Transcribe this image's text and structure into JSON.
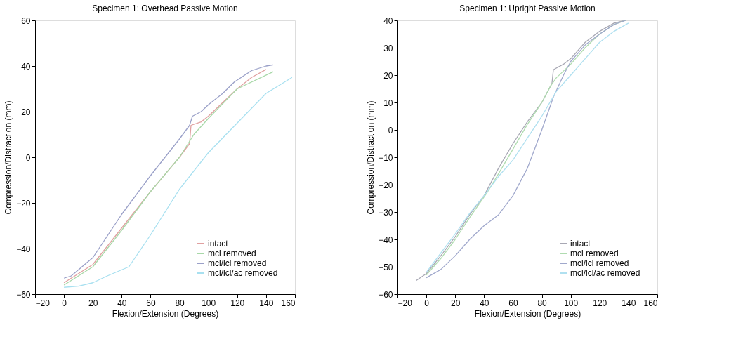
{
  "chart_data": [
    {
      "type": "line",
      "title": "Specimen 1: Overhead Passive Motion",
      "xlabel": "Flexion/Extension (Degrees)",
      "ylabel": "Compression/Distraction (mm)",
      "xlim": [
        -20,
        160
      ],
      "xticks": [
        -20,
        0,
        20,
        40,
        60,
        80,
        100,
        120,
        140,
        160
      ],
      "ylim": [
        -60,
        60
      ],
      "yticks": [
        -60,
        -40,
        -20,
        0,
        20,
        40,
        60
      ],
      "grid": false,
      "legend": "bottom right",
      "series": [
        {
          "name": "intact",
          "color": "#e0a0a0",
          "x": [
            0,
            20,
            40,
            60,
            80,
            87,
            88,
            95,
            100,
            110,
            120,
            130,
            140
          ],
          "values": [
            -55,
            -47,
            -31,
            -15,
            0,
            6,
            14,
            15.5,
            18,
            24,
            30,
            35,
            38.5
          ]
        },
        {
          "name": "mcl removed",
          "color": "#a8d8a8",
          "x": [
            0,
            20,
            40,
            60,
            80,
            90,
            100,
            120,
            145
          ],
          "values": [
            -56,
            -48,
            -32,
            -15,
            0,
            10,
            17,
            30,
            37.5
          ]
        },
        {
          "name": "mcl/lcl removed",
          "color": "#9aa0c8",
          "x": [
            0,
            5,
            20,
            40,
            60,
            70,
            80,
            87,
            89,
            95,
            100,
            110,
            118,
            130,
            140,
            145
          ],
          "values": [
            -53,
            -52,
            -44,
            -25,
            -8,
            0,
            8,
            14,
            18,
            20,
            23,
            28,
            33,
            38,
            40,
            40.5
          ]
        },
        {
          "name": "mcl/lcl/ac removed",
          "color": "#a8e0f0",
          "x": [
            0,
            10,
            20,
            30,
            45,
            60,
            80,
            100,
            120,
            140,
            158
          ],
          "values": [
            -57,
            -56.5,
            -55,
            -52,
            -48,
            -34,
            -14,
            2,
            15,
            28,
            35
          ]
        }
      ]
    },
    {
      "type": "line",
      "title": "Specimen 1: Upright Passive Motion",
      "xlabel": "Flexion/Extension (Degrees)",
      "ylabel": "Compression/Distraction (mm)",
      "xlim": [
        -20,
        160
      ],
      "xticks": [
        -20,
        0,
        20,
        40,
        60,
        80,
        100,
        120,
        140,
        160
      ],
      "ylim": [
        -60,
        40
      ],
      "yticks": [
        -60,
        -50,
        -40,
        -30,
        -20,
        -10,
        0,
        10,
        20,
        30,
        40
      ],
      "grid": false,
      "legend": "bottom right",
      "series": [
        {
          "name": "intact",
          "color": "#a8a8b4",
          "x": [
            -7,
            0,
            10,
            20,
            30,
            40,
            50,
            60,
            70,
            80,
            87,
            88,
            95,
            100,
            110,
            120,
            130,
            138
          ],
          "values": [
            -55,
            -52.5,
            -46,
            -39,
            -31,
            -24,
            -14,
            -5,
            3,
            10,
            17,
            22,
            24,
            26,
            32,
            36,
            39,
            40
          ]
        },
        {
          "name": "mcl removed",
          "color": "#b0dcb0",
          "x": [
            0,
            10,
            20,
            30,
            42,
            50,
            60,
            70,
            80,
            86,
            90,
            100,
            110,
            120,
            130,
            138
          ],
          "values": [
            -53,
            -47,
            -40,
            -32,
            -23,
            -16,
            -7,
            2,
            10,
            16,
            19,
            24,
            30,
            35,
            38.5,
            40
          ]
        },
        {
          "name": "mcl/lcl removed",
          "color": "#a0a8cc",
          "x": [
            0,
            10,
            20,
            30,
            40,
            50,
            60,
            70,
            80,
            88,
            95,
            100,
            110,
            120,
            130,
            138
          ],
          "values": [
            -54,
            -51,
            -46,
            -40,
            -35,
            -31,
            -24,
            -14,
            0,
            12,
            20,
            25,
            31,
            35,
            38.5,
            40
          ]
        },
        {
          "name": "mcl/lcl/ac removed",
          "color": "#b0e0f0",
          "x": [
            0,
            10,
            20,
            30,
            40,
            50,
            60,
            70,
            80,
            90,
            100,
            110,
            120,
            130,
            140
          ],
          "values": [
            -52,
            -45,
            -38,
            -30.5,
            -24,
            -17,
            -11,
            -3,
            5,
            14,
            20,
            26,
            32,
            36,
            39
          ]
        }
      ]
    }
  ]
}
